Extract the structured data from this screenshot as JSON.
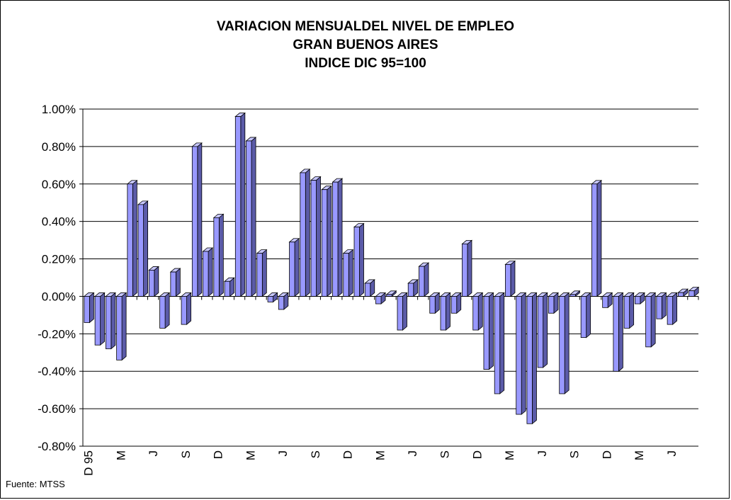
{
  "chart_data": {
    "type": "bar",
    "title": [
      "VARIACION MENSUALDEL NIVEL DE EMPLEO",
      "GRAN BUENOS AIRES",
      "INDICE DIC 95=100"
    ],
    "xlabel": "",
    "ylabel": "",
    "ylim": [
      -0.8,
      1.0
    ],
    "ytick_step": 0.2,
    "y_ticks": [
      "1.00%",
      "0.80%",
      "0.60%",
      "0.40%",
      "0.20%",
      "0.00%",
      "-0.20%",
      "-0.40%",
      "-0.60%",
      "-0.80%"
    ],
    "x_tick_labels": [
      {
        "index": 0,
        "label": "D 95"
      },
      {
        "index": 3,
        "label": "M"
      },
      {
        "index": 6,
        "label": "J"
      },
      {
        "index": 9,
        "label": "S"
      },
      {
        "index": 12,
        "label": "D"
      },
      {
        "index": 15,
        "label": "M"
      },
      {
        "index": 18,
        "label": "J"
      },
      {
        "index": 21,
        "label": "S"
      },
      {
        "index": 24,
        "label": "D"
      },
      {
        "index": 27,
        "label": "M"
      },
      {
        "index": 30,
        "label": "J"
      },
      {
        "index": 33,
        "label": "S"
      },
      {
        "index": 36,
        "label": "D"
      },
      {
        "index": 39,
        "label": "M"
      },
      {
        "index": 42,
        "label": "J"
      },
      {
        "index": 45,
        "label": "S"
      },
      {
        "index": 48,
        "label": "D"
      },
      {
        "index": 51,
        "label": "M"
      },
      {
        "index": 54,
        "label": "J"
      }
    ],
    "series": [
      {
        "values": [
          -0.14,
          -0.26,
          -0.28,
          -0.34,
          0.6,
          0.49,
          0.14,
          -0.17,
          0.13,
          -0.15,
          0.8,
          0.24,
          0.42,
          0.08,
          0.96,
          0.83,
          0.23,
          -0.03,
          -0.07,
          0.29,
          0.66,
          0.62,
          0.57,
          0.61,
          0.23,
          0.37,
          0.07,
          -0.04,
          0.01,
          -0.18,
          0.07,
          0.16,
          -0.09,
          -0.18,
          -0.09,
          0.28,
          -0.18,
          -0.39,
          -0.52,
          0.17,
          -0.63,
          -0.68,
          -0.38,
          -0.09,
          -0.52,
          0.01,
          -0.22,
          0.6,
          -0.06,
          -0.4,
          -0.17,
          -0.04,
          -0.27,
          -0.12,
          -0.15,
          0.02,
          0.03
        ]
      }
    ],
    "grid": true,
    "colors": {
      "bar_front": "#9999ff",
      "bar_side": "#5b5ba8",
      "bar_top": "#c7c7ff",
      "outline": "#000000",
      "grid": "#000000"
    }
  },
  "footer": {
    "source": "Fuente: MTSS"
  }
}
